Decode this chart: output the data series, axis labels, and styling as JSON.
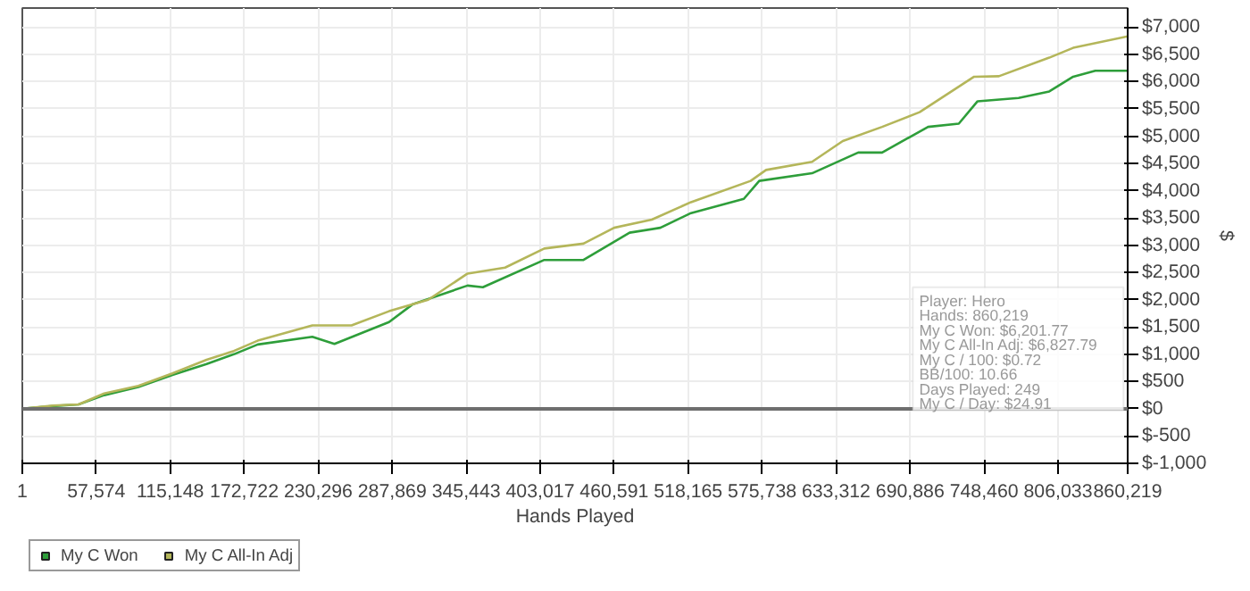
{
  "chart_data": {
    "type": "line",
    "xlabel": "Hands Played",
    "ylabel": "$",
    "xlim": [
      1,
      860219
    ],
    "xticks": [
      1,
      {
        "value": 57574,
        "label": "57,574"
      },
      {
        "value": 115148,
        "label": "115,148"
      },
      {
        "value": 172722,
        "label": "172,722"
      },
      {
        "value": 230296,
        "label": "230,296"
      },
      {
        "value": 287869,
        "label": "287,869"
      },
      {
        "value": 345443,
        "label": "345,443"
      },
      {
        "value": 403017,
        "label": "403,017"
      },
      {
        "value": 460591,
        "label": "460,591"
      },
      {
        "value": 518165,
        "label": "518,165"
      },
      {
        "value": 575738,
        "label": "575,738"
      },
      {
        "value": 633312,
        "label": "633,312"
      },
      {
        "value": 690886,
        "label": "690,886"
      },
      {
        "value": 748460,
        "label": "748,460"
      },
      {
        "value": 806033,
        "label": "806,033"
      },
      {
        "value": 860219,
        "label": "860,219"
      }
    ],
    "ylim": [
      -1000,
      7350
    ],
    "yticks": [
      {
        "value": -1000,
        "label": "$-1,000"
      },
      {
        "value": -500,
        "label": "$-500"
      },
      {
        "value": 0,
        "label": "$0"
      },
      {
        "value": 500,
        "label": "$500"
      },
      {
        "value": 1000,
        "label": "$1,000"
      },
      {
        "value": 1500,
        "label": "$1,500"
      },
      {
        "value": 2000,
        "label": "$2,000"
      },
      {
        "value": 2500,
        "label": "$2,500"
      },
      {
        "value": 3000,
        "label": "$3,000"
      },
      {
        "value": 3500,
        "label": "$3,500"
      },
      {
        "value": 4000,
        "label": "$4,000"
      },
      {
        "value": 4500,
        "label": "$4,500"
      },
      {
        "value": 5000,
        "label": "$5,000"
      },
      {
        "value": 5500,
        "label": "$5,500"
      },
      {
        "value": 6000,
        "label": "$6,000"
      },
      {
        "value": 6500,
        "label": "$6,500"
      },
      {
        "value": 7000,
        "label": "$7,000"
      }
    ],
    "grid": true,
    "legend": "bottom left",
    "marker": "none",
    "line_style": "solid",
    "ref_lines": [
      {
        "axis": "y",
        "value": 0,
        "label": null,
        "color": "#6e6e6e"
      }
    ],
    "series": [
      {
        "name": "My C Won",
        "color": "#2e9e3a",
        "x": [
          1,
          23900,
          43800,
          63700,
          90300,
          116800,
          143400,
          164600,
          183200,
          225700,
          242900,
          285400,
          304000,
          346500,
          358400,
          406200,
          436700,
          472600,
          496500,
          520400,
          561500,
          573500,
          614600,
          650500,
          669100,
          704900,
          728800,
          743400,
          775300,
          799200,
          817800,
          835000,
          860219
        ],
        "values": [
          0,
          50,
          80,
          250,
          400,
          620,
          820,
          1000,
          1180,
          1320,
          1190,
          1590,
          1920,
          2260,
          2230,
          2730,
          2730,
          3230,
          3320,
          3590,
          3850,
          4180,
          4320,
          4700,
          4700,
          5170,
          5230,
          5640,
          5700,
          5820,
          6090,
          6200,
          6200
        ]
      },
      {
        "name": "My C All-In Adj",
        "color": "#b4b65a",
        "x": [
          1,
          23900,
          43800,
          63700,
          90300,
          116800,
          143400,
          164600,
          183200,
          225700,
          256200,
          285400,
          315900,
          346500,
          375700,
          406200,
          436700,
          460600,
          489900,
          520400,
          566800,
          578800,
          614600,
          638500,
          669100,
          698300,
          740700,
          760000,
          799200,
          817800,
          860219
        ],
        "values": [
          0,
          60,
          80,
          280,
          420,
          650,
          900,
          1060,
          1250,
          1530,
          1530,
          1790,
          2000,
          2480,
          2590,
          2940,
          3030,
          3320,
          3470,
          3790,
          4180,
          4380,
          4530,
          4910,
          5170,
          5440,
          6090,
          6100,
          6440,
          6620,
          6830
        ]
      }
    ],
    "annotations": [
      "Player: Hero",
      "Hands: 860,219",
      "My C Won: $6,201.77",
      "My C All-In Adj: $6,827.79",
      "My C / 100: $0.72",
      "BB/100: 10.66",
      "Days Played: 249",
      "My C / Day: $24.91"
    ]
  }
}
